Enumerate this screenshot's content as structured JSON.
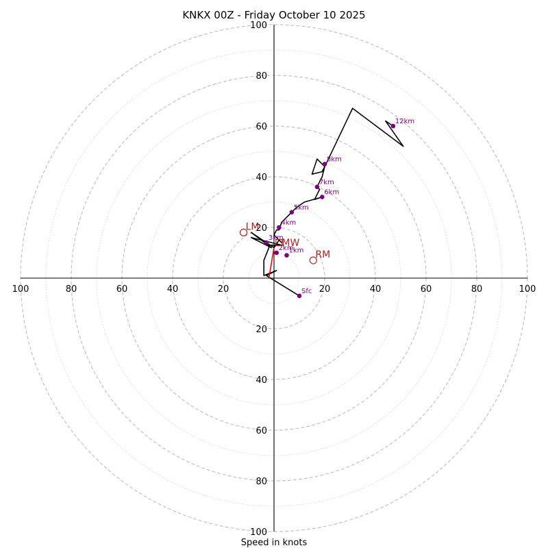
{
  "chart_data": {
    "type": "hodograph",
    "title": "KNKX 00Z - Friday October 10 2025",
    "xlabel": "Speed in knots",
    "units": "knots",
    "range": [
      -100,
      100
    ],
    "major_rings": [
      20,
      40,
      60,
      80,
      100
    ],
    "minor_rings": [
      10,
      30,
      50,
      70,
      90
    ],
    "tick_labels": [
      "100",
      "80",
      "60",
      "40",
      "20"
    ],
    "trace": [
      [
        10,
        -7
      ],
      [
        -3,
        1
      ],
      [
        1,
        3
      ],
      [
        -4,
        1
      ],
      [
        -4,
        7
      ],
      [
        -2,
        12
      ],
      [
        -2,
        13
      ],
      [
        3,
        13
      ],
      [
        -5,
        15
      ],
      [
        -9,
        16
      ],
      [
        -1,
        12
      ],
      [
        -9,
        18
      ],
      [
        0,
        12
      ],
      [
        2,
        15
      ],
      [
        3,
        14
      ],
      [
        0,
        17
      ],
      [
        1,
        19
      ],
      [
        2,
        19
      ],
      [
        3,
        22
      ],
      [
        4,
        23
      ],
      [
        5,
        24
      ],
      [
        6,
        25
      ],
      [
        8,
        27
      ],
      [
        9,
        28
      ],
      [
        12,
        30
      ],
      [
        19,
        32
      ],
      [
        16,
        31
      ],
      [
        17,
        33
      ],
      [
        18,
        35
      ],
      [
        17,
        36
      ],
      [
        18,
        38
      ],
      [
        19,
        40
      ],
      [
        20,
        44
      ],
      [
        18,
        46
      ],
      [
        17,
        47
      ],
      [
        15,
        41
      ],
      [
        19,
        42
      ],
      [
        20,
        44
      ],
      [
        21,
        46
      ],
      [
        31,
        67
      ],
      [
        51,
        52
      ],
      [
        44,
        62
      ],
      [
        47,
        60
      ]
    ],
    "height_markers": [
      {
        "label": "Sfc",
        "u": 10,
        "v": -7
      },
      {
        "label": "1km",
        "u": 5,
        "v": 9
      },
      {
        "label": "2km",
        "u": 1,
        "v": 10
      },
      {
        "label": "3km",
        "u": -3,
        "v": 14
      },
      {
        "label": "4km",
        "u": 2,
        "v": 20
      },
      {
        "label": "5km",
        "u": 7,
        "v": 26
      },
      {
        "label": "6km",
        "u": 19,
        "v": 32
      },
      {
        "label": "7km",
        "u": 17,
        "v": 36
      },
      {
        "label": "8km",
        "u": 20,
        "v": 45
      },
      {
        "label": "12km",
        "u": 47,
        "v": 60
      }
    ],
    "storm_motion": {
      "rm": {
        "label": "RM",
        "u": 15.5,
        "v": 7
      },
      "lm": {
        "label": "LM",
        "u": -12,
        "v": 18
      },
      "mw": {
        "label": "MW",
        "u": 2,
        "v": 14
      }
    },
    "shear_vector": {
      "from": [
        -2,
        0
      ],
      "to": [
        0,
        12
      ]
    }
  }
}
